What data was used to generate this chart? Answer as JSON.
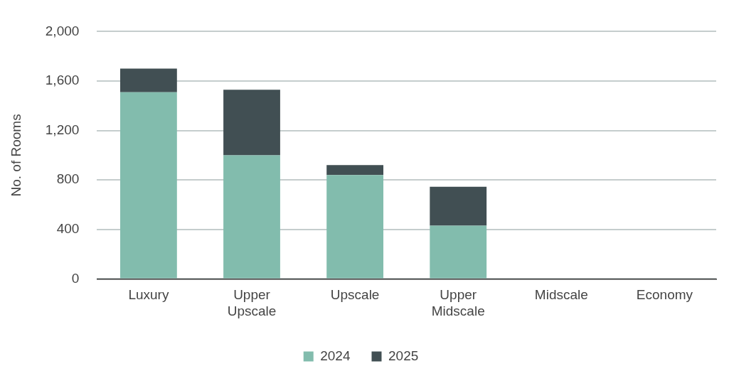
{
  "chart_data": {
    "type": "bar",
    "ylabel": "No. of Rooms",
    "categories": [
      "Luxury",
      "Upper Upscale",
      "Upscale",
      "Upper Midscale",
      "Midscale",
      "Economy"
    ],
    "series": [
      {
        "name": "2024",
        "color": "#82bcad",
        "values": [
          1510,
          1000,
          840,
          430,
          0,
          0
        ]
      },
      {
        "name": "2025",
        "color": "#414f53",
        "values": [
          190,
          530,
          80,
          315,
          0,
          0
        ]
      }
    ],
    "stacked": true,
    "ylim": [
      0,
      2000
    ],
    "yticks": [
      0,
      400,
      800,
      {
        "value": 1200,
        "label": "1,200"
      },
      {
        "value": 1600,
        "label": "1,600"
      },
      {
        "value": 2000,
        "label": "2,000"
      }
    ],
    "grid": "y",
    "legend": "bottom"
  }
}
